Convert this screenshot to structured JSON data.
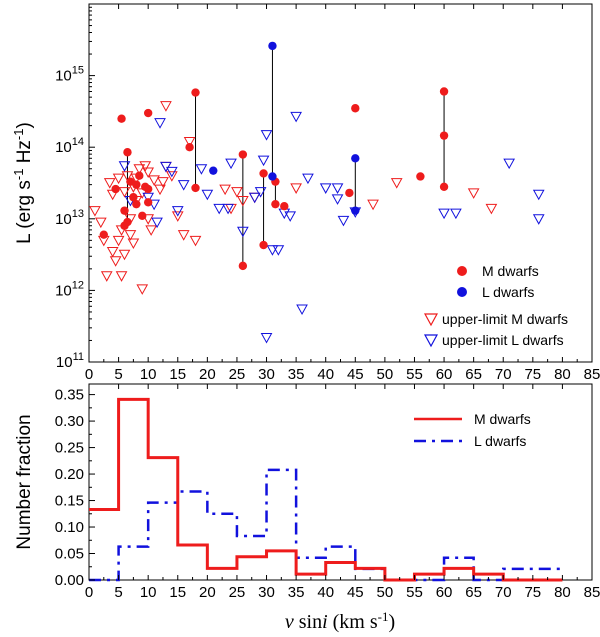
{
  "colors": {
    "m_dwarfs": "#ee1c1c",
    "l_dwarfs": "#1111dd",
    "axes": "#000000",
    "vline": "#000000"
  },
  "chart_data": [
    {
      "type": "scatter",
      "ylabel": "L (erg s-1 Hz-1)",
      "xlim": [
        0,
        85
      ],
      "ylim": [
        100000000000.0,
        1e+16
      ],
      "yscale": "log",
      "x_ticks": [
        "0",
        "5",
        "10",
        "15",
        "20",
        "25",
        "30",
        "35",
        "40",
        "45",
        "50",
        "55",
        "60",
        "65",
        "70",
        "75",
        "80",
        "85"
      ],
      "y_ticks": [
        {
          "base": "10",
          "exp": "11",
          "value": 100000000000.0
        },
        {
          "base": "10",
          "exp": "12",
          "value": 1000000000000.0
        },
        {
          "base": "10",
          "exp": "13",
          "value": 10000000000000.0
        },
        {
          "base": "10",
          "exp": "14",
          "value": 100000000000000.0
        },
        {
          "base": "10",
          "exp": "15",
          "value": 1000000000000000.0
        }
      ],
      "legend_position": "bottom-right",
      "series": [
        {
          "name": "M dwarfs",
          "marker": "filled-circle",
          "color": "#ee1c1c",
          "points": [
            [
              2.5,
              6000000000000.0
            ],
            [
              4.5,
              26000000000000.0
            ],
            [
              5.5,
              250000000000000.0
            ],
            [
              6,
              8000000000000.0
            ],
            [
              6,
              13000000000000.0
            ],
            [
              6.5,
              85000000000000.0
            ],
            [
              6.5,
              9000000000000.0
            ],
            [
              7,
              33000000000000.0
            ],
            [
              7.5,
              20000000000000.0
            ],
            [
              8,
              16000000000000.0
            ],
            [
              8,
              30000000000000.0
            ],
            [
              8.5,
              40000000000000.0
            ],
            [
              9,
              11000000000000.0
            ],
            [
              9.5,
              28000000000000.0
            ],
            [
              10,
              300000000000000.0
            ],
            [
              10,
              17000000000000.0
            ],
            [
              10,
              26000000000000.0
            ],
            [
              17,
              100000000000000.0
            ],
            [
              18,
              580000000000000.0
            ],
            [
              18,
              27000000000000.0
            ],
            [
              26,
              2200000000000.0
            ],
            [
              26,
              79000000000000.0
            ],
            [
              29.5,
              4300000000000.0
            ],
            [
              29.5,
              43000000000000.0
            ],
            [
              31.5,
              16000000000000.0
            ],
            [
              31.5,
              33000000000000.0
            ],
            [
              33,
              15000000000000.0
            ],
            [
              44,
              23000000000000.0
            ],
            [
              45,
              350000000000000.0
            ],
            [
              56,
              39000000000000.0
            ],
            [
              60,
              600000000000000.0
            ],
            [
              60,
              145000000000000.0
            ],
            [
              60,
              28000000000000.0
            ]
          ]
        },
        {
          "name": "L dwarfs",
          "marker": "filled-circle",
          "color": "#1111dd",
          "points": [
            [
              21,
              47000000000000.0
            ],
            [
              31,
              2600000000000000.0
            ],
            [
              31,
              39000000000000.0
            ],
            [
              45,
              70000000000000.0
            ],
            [
              45,
              13000000000000.0
            ]
          ]
        },
        {
          "name": "upper-limit M dwarfs",
          "marker": "open-triangle-down",
          "color": "#ee1c1c",
          "points": [
            [
              1,
              13000000000000.0
            ],
            [
              2,
              9000000000000.0
            ],
            [
              2.5,
              5000000000000.0
            ],
            [
              3,
              1600000000000.0
            ],
            [
              3.5,
              32000000000000.0
            ],
            [
              4,
              3500000000000.0
            ],
            [
              4,
              22000000000000.0
            ],
            [
              4.5,
              2600000000000.0
            ],
            [
              5,
              37000000000000.0
            ],
            [
              5,
              5000000000000.0
            ],
            [
              5.5,
              1600000000000.0
            ],
            [
              5.5,
              7000000000000.0
            ],
            [
              6,
              3200000000000.0
            ],
            [
              6,
              24000000000000.0
            ],
            [
              6.5,
              40000000000000.0
            ],
            [
              7,
              10000000000000.0
            ],
            [
              7,
              6000000000000.0
            ],
            [
              7.5,
              28000000000000.0
            ],
            [
              7.5,
              4600000000000.0
            ],
            [
              8,
              37000000000000.0
            ],
            [
              8,
              18000000000000.0
            ],
            [
              8.5,
              50000000000000.0
            ],
            [
              9,
              1050000000000.0
            ],
            [
              9,
              23000000000000.0
            ],
            [
              9.5,
              55000000000000.0
            ],
            [
              10,
              45000000000000.0
            ],
            [
              10,
              10000000000000.0
            ],
            [
              10.5,
              7000000000000.0
            ],
            [
              11,
              35000000000000.0
            ],
            [
              12,
              26000000000000.0
            ],
            [
              12.5,
              33000000000000.0
            ],
            [
              13,
              54000000000000.0
            ],
            [
              13,
              380000000000000.0
            ],
            [
              14,
              40000000000000.0
            ],
            [
              15,
              11000000000000.0
            ],
            [
              16,
              6000000000000.0
            ],
            [
              17,
              120000000000000.0
            ],
            [
              18,
              5000000000000.0
            ],
            [
              23,
              26000000000000.0
            ],
            [
              24,
              14000000000000.0
            ],
            [
              25,
              24000000000000.0
            ],
            [
              26,
              18000000000000.0
            ],
            [
              28,
              20000000000000.0
            ],
            [
              35,
              27000000000000.0
            ],
            [
              48,
              16000000000000.0
            ],
            [
              52,
              32000000000000.0
            ],
            [
              65,
              23000000000000.0
            ],
            [
              68,
              14000000000000.0
            ]
          ]
        },
        {
          "name": "upper-limit L dwarfs",
          "marker": "open-triangle-down",
          "color": "#1111dd",
          "points": [
            [
              6,
              55000000000000.0
            ],
            [
              7,
              18000000000000.0
            ],
            [
              10,
              20000000000000.0
            ],
            [
              11,
              16000000000000.0
            ],
            [
              11.5,
              9000000000000.0
            ],
            [
              12,
              220000000000000.0
            ],
            [
              13,
              54000000000000.0
            ],
            [
              14,
              46000000000000.0
            ],
            [
              15,
              13000000000000.0
            ],
            [
              16,
              30000000000000.0
            ],
            [
              19,
              50000000000000.0
            ],
            [
              20,
              22000000000000.0
            ],
            [
              22,
              14000000000000.0
            ],
            [
              23.5,
              14000000000000.0
            ],
            [
              24,
              60000000000000.0
            ],
            [
              26,
              6700000000000.0
            ],
            [
              28,
              20000000000000.0
            ],
            [
              29,
              24000000000000.0
            ],
            [
              29.5,
              66000000000000.0
            ],
            [
              30,
              150000000000000.0
            ],
            [
              30,
              220000000000.0
            ],
            [
              31,
              3700000000000.0
            ],
            [
              32,
              3700000000000.0
            ],
            [
              33,
              12000000000000.0
            ],
            [
              34,
              11000000000000.0
            ],
            [
              35,
              270000000000000.0
            ],
            [
              36,
              550000000000.0
            ],
            [
              37,
              37000000000000.0
            ],
            [
              40,
              27000000000000.0
            ],
            [
              42,
              19000000000000.0
            ],
            [
              42,
              27000000000000.0
            ],
            [
              43,
              9500000000000.0
            ],
            [
              45,
              12500000000000.0
            ],
            [
              60,
              12000000000000.0
            ],
            [
              62,
              12000000000000.0
            ],
            [
              71,
              60000000000000.0
            ],
            [
              76,
              22000000000000.0
            ],
            [
              76,
              10000000000000.0
            ]
          ]
        }
      ],
      "connectors": [
        [
          6.5,
          9000000000000.0,
          6.5,
          85000000000000.0
        ],
        [
          18,
          27000000000000.0,
          18,
          580000000000000.0
        ],
        [
          26,
          2200000000000.0,
          26,
          79000000000000.0
        ],
        [
          29.5,
          4300000000000.0,
          29.5,
          43000000000000.0
        ],
        [
          31,
          39000000000000.0,
          31,
          2600000000000000.0
        ],
        [
          31.5,
          16000000000000.0,
          31.5,
          33000000000000.0
        ],
        [
          45,
          13000000000000.0,
          45,
          70000000000000.0
        ],
        [
          60,
          28000000000000.0,
          60,
          600000000000000.0
        ]
      ]
    },
    {
      "type": "line",
      "ylabel": "Number fraction",
      "xlabel": "v sini (km s-1)",
      "xlim": [
        0,
        85
      ],
      "ylim": [
        0,
        0.37
      ],
      "x_ticks": [
        "0",
        "5",
        "10",
        "15",
        "20",
        "25",
        "30",
        "35",
        "40",
        "45",
        "50",
        "55",
        "60",
        "65",
        "70",
        "75",
        "80",
        "85"
      ],
      "y_ticks": [
        "0.00",
        "0.05",
        "0.10",
        "0.15",
        "0.20",
        "0.25",
        "0.30",
        "0.35"
      ],
      "legend_position": "top-right",
      "bin_edges": [
        0,
        5,
        10,
        15,
        20,
        25,
        30,
        35,
        40,
        45,
        50,
        55,
        60,
        65,
        70,
        75,
        80
      ],
      "series": [
        {
          "name": "M dwarfs",
          "style": "solid",
          "color": "#ee1c1c",
          "values": [
            0.133,
            0.341,
            0.231,
            0.066,
            0.022,
            0.044,
            0.055,
            0.011,
            0.033,
            0.022,
            0.0,
            0.011,
            0.022,
            0.011,
            0.0,
            0.0
          ]
        },
        {
          "name": "L dwarfs",
          "style": "dashed",
          "color": "#1111dd",
          "values": [
            0.0,
            0.063,
            0.146,
            0.167,
            0.125,
            0.083,
            0.208,
            0.042,
            0.063,
            0.021,
            0.0,
            0.0,
            0.042,
            0.0,
            0.021,
            0.021
          ]
        }
      ]
    }
  ]
}
